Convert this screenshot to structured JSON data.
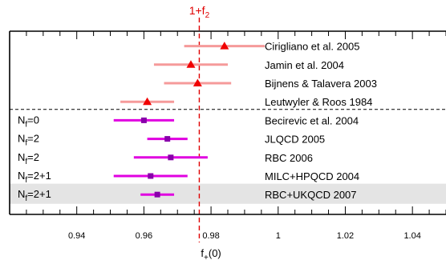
{
  "chart_data": {
    "type": "scatter",
    "title": "",
    "xlabel_main": "f",
    "xlabel_sub": "+",
    "xlabel_suffix": "(0)",
    "xlim": [
      0.92,
      1.05
    ],
    "xticks": [
      0.94,
      0.96,
      0.98,
      1.0,
      1.02,
      1.04
    ],
    "xtick_labels": [
      "0.94",
      "0.96",
      "0.98",
      "1",
      "1.02",
      "1.04"
    ],
    "reference": {
      "value": 0.9765,
      "label_main": "1+f",
      "label_sub": "2",
      "color": "#e00000"
    },
    "separator_after_row": 4,
    "highlight_row": 9,
    "highlight_color": "#e4e4e4",
    "groups": [
      {
        "name": "models",
        "marker": "triangle",
        "color": "#f00000",
        "bar_color": "#f59a9a"
      },
      {
        "name": "lattice",
        "marker": "square",
        "color": "#8800aa",
        "bar_color": "#e000e0"
      }
    ],
    "points": [
      {
        "label": "Cirigliano et al. 2005",
        "nf_main": "",
        "nf_sub": "",
        "nf_value": "",
        "value": 0.984,
        "err_low": 0.972,
        "err_high": 0.996,
        "group": 0
      },
      {
        "label": "Jamin et al. 2004",
        "nf_main": "",
        "nf_sub": "",
        "nf_value": "",
        "value": 0.974,
        "err_low": 0.963,
        "err_high": 0.985,
        "group": 0
      },
      {
        "label": "Bijnens & Talavera 2003",
        "nf_main": "",
        "nf_sub": "",
        "nf_value": "",
        "value": 0.976,
        "err_low": 0.966,
        "err_high": 0.986,
        "group": 0
      },
      {
        "label": "Leutwyler & Roos 1984",
        "nf_main": "",
        "nf_sub": "",
        "nf_value": "",
        "value": 0.961,
        "err_low": 0.953,
        "err_high": 0.969,
        "group": 0
      },
      {
        "label": "Becirevic et al. 2004",
        "nf_main": "N",
        "nf_sub": "f",
        "nf_value": "=0",
        "value": 0.96,
        "err_low": 0.951,
        "err_high": 0.969,
        "group": 1
      },
      {
        "label": "JLQCD 2005",
        "nf_main": "N",
        "nf_sub": "f",
        "nf_value": "=2",
        "value": 0.967,
        "err_low": 0.961,
        "err_high": 0.973,
        "group": 1
      },
      {
        "label": "RBC 2006",
        "nf_main": "N",
        "nf_sub": "f",
        "nf_value": "=2",
        "value": 0.968,
        "err_low": 0.957,
        "err_high": 0.979,
        "group": 1
      },
      {
        "label": "MILC+HPQCD 2004",
        "nf_main": "N",
        "nf_sub": "f",
        "nf_value": "=2+1",
        "value": 0.962,
        "err_low": 0.951,
        "err_high": 0.973,
        "group": 1
      },
      {
        "label": "RBC+UKQCD 2007",
        "nf_main": "N",
        "nf_sub": "f",
        "nf_value": "=2+1",
        "value": 0.964,
        "err_low": 0.959,
        "err_high": 0.969,
        "group": 1
      }
    ]
  }
}
